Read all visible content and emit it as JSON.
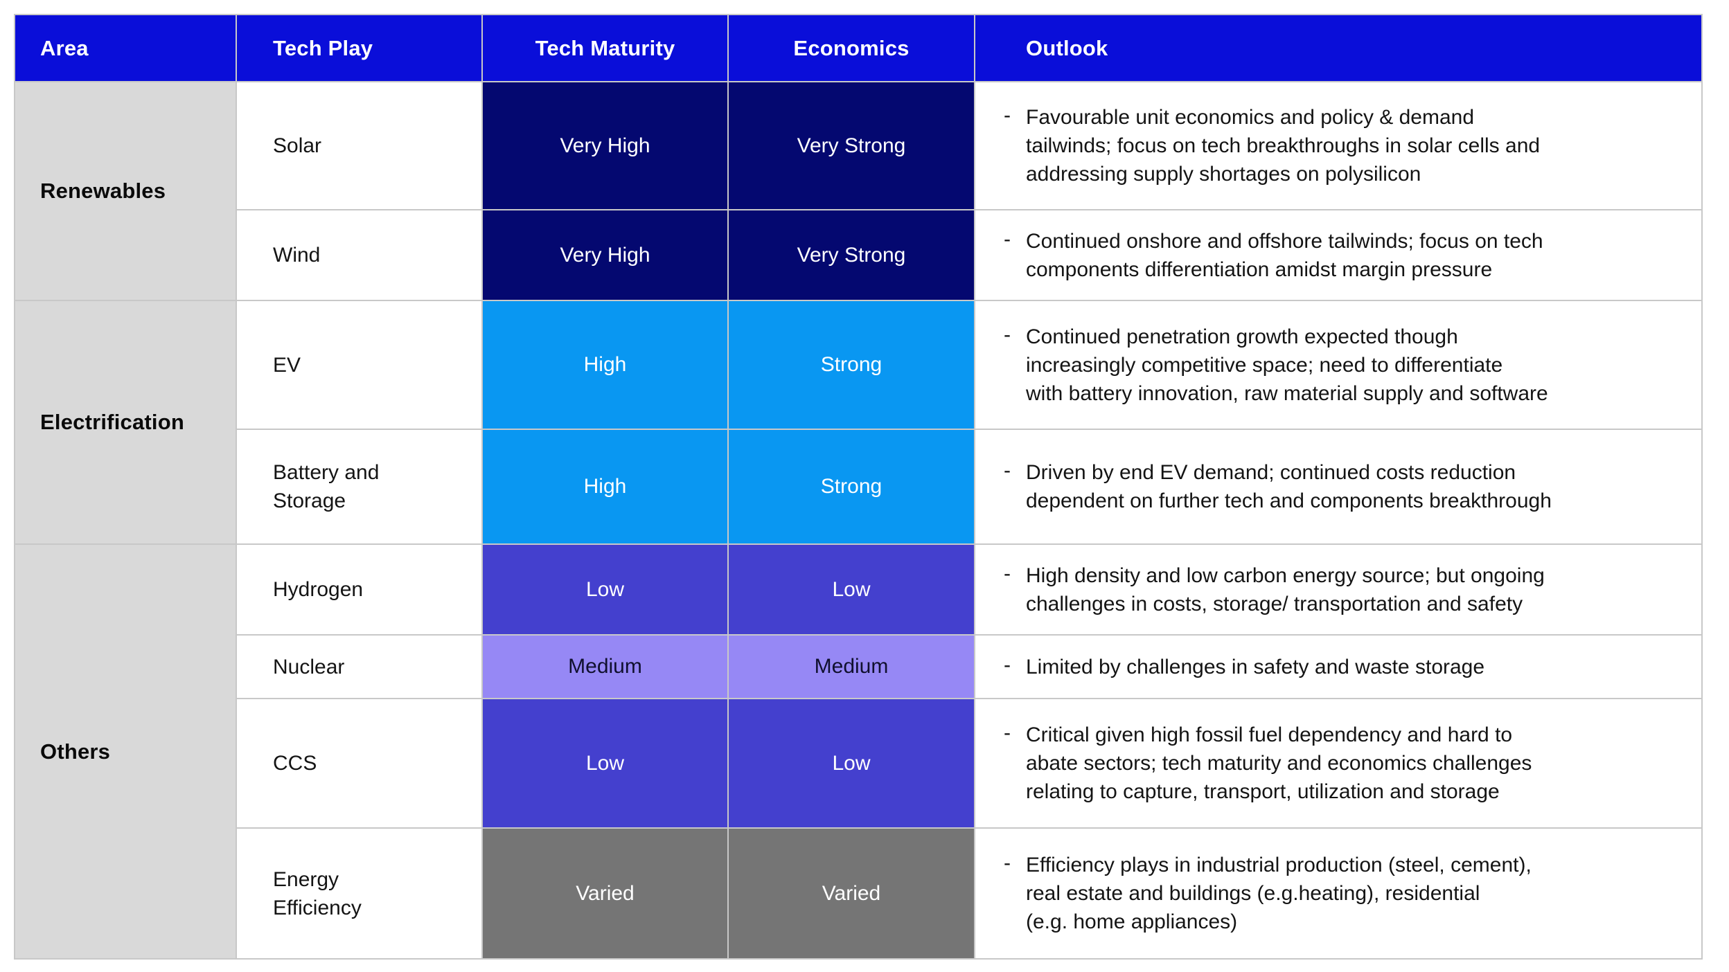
{
  "table": {
    "bullet_char": "-",
    "headers": {
      "area": "Area",
      "tech_play": "Tech Play",
      "tech_maturity": "Tech Maturity",
      "economics": "Economics",
      "outlook": "Outlook"
    },
    "groups": [
      {
        "area": "Renewables",
        "rows": [
          {
            "tech_play": "Solar",
            "tech_maturity": "Very High",
            "economics": "Very Strong",
            "level": "very_high",
            "outlook": "Favourable unit economics and policy & demand\ntailwinds; focus on tech breakthroughs in solar cells and\naddressing supply shortages on polysilicon"
          },
          {
            "tech_play": "Wind",
            "tech_maturity": "Very High",
            "economics": "Very Strong",
            "level": "very_high",
            "outlook": "Continued onshore and offshore tailwinds; focus on tech\ncomponents differentiation amidst margin pressure"
          }
        ]
      },
      {
        "area": "Electrification",
        "rows": [
          {
            "tech_play": "EV",
            "tech_maturity": "High",
            "economics": "Strong",
            "level": "high",
            "outlook": "Continued penetration growth expected though\nincreasingly competitive space; need to differentiate\nwith battery innovation, raw material supply and software"
          },
          {
            "tech_play": "Battery and\nStorage",
            "tech_maturity": "High",
            "economics": "Strong",
            "level": "high",
            "outlook": "Driven by end EV demand; continued costs reduction\ndependent on further tech and components breakthrough"
          }
        ]
      },
      {
        "area": "Others",
        "rows": [
          {
            "tech_play": "Hydrogen",
            "tech_maturity": "Low",
            "economics": "Low",
            "level": "low",
            "outlook": "High density and low carbon energy source; but ongoing\nchallenges in costs, storage/ transportation and safety"
          },
          {
            "tech_play": "Nuclear",
            "tech_maturity": "Medium",
            "economics": "Medium",
            "level": "medium",
            "outlook": "Limited by challenges in safety and waste storage"
          },
          {
            "tech_play": "CCS",
            "tech_maturity": "Low",
            "economics": "Low",
            "level": "low",
            "outlook": "Critical given high fossil fuel dependency and hard to\nabate sectors; tech maturity and economics challenges\nrelating to capture, transport, utilization and storage"
          },
          {
            "tech_play": "Energy\nEfficiency",
            "tech_maturity": "Varied",
            "economics": "Varied",
            "level": "varied",
            "outlook": "Efficiency plays in industrial production (steel, cement),\nreal estate and buildings (e.g.heating), residential\n(e.g. home appliances)"
          }
        ]
      }
    ]
  },
  "colors": {
    "header_bg": "#0A0ED9",
    "header_text": "#FFFFFF",
    "area_bg": "#D9D9D9",
    "grid_line": "#C8C8C8",
    "levels": {
      "very_high": {
        "bg": "#040870",
        "text": "#FFFFFF"
      },
      "high": {
        "bg": "#0997F2",
        "text": "#FFFFFF"
      },
      "low": {
        "bg": "#4440CE",
        "text": "#FFFFFF"
      },
      "medium": {
        "bg": "#9688F5",
        "text": "#10102E"
      },
      "varied": {
        "bg": "#757575",
        "text": "#FFFFFF"
      }
    }
  }
}
